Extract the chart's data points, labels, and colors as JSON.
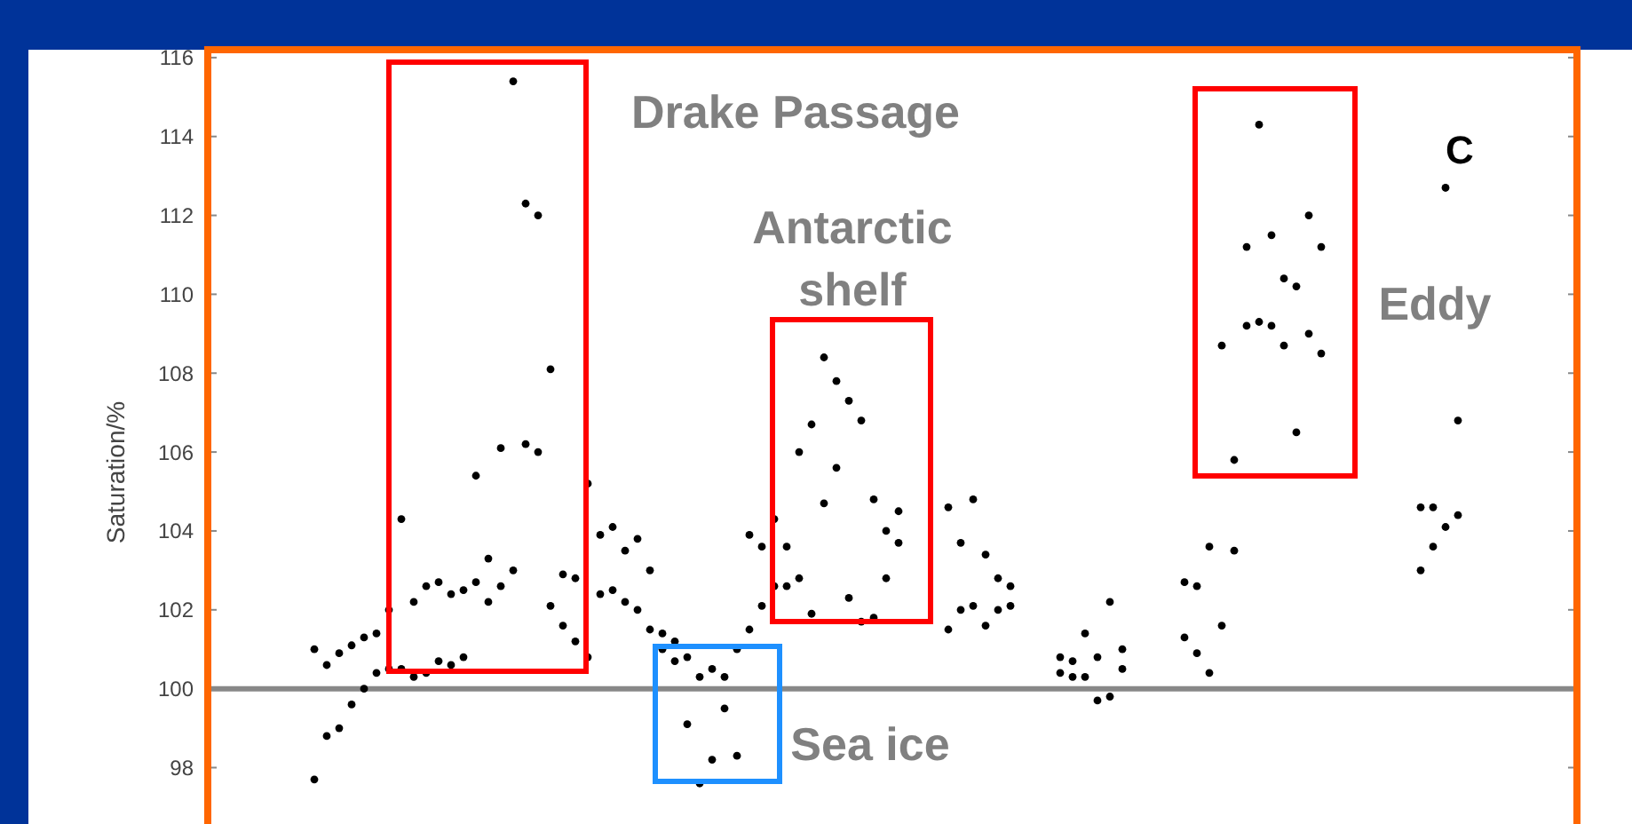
{
  "chart_data": {
    "type": "scatter",
    "ylabel": "Saturation/%",
    "ylim": [
      96.3,
      116.2
    ],
    "yticks": [
      98,
      100,
      102,
      104,
      106,
      108,
      110,
      112,
      114,
      116
    ],
    "grid": false,
    "marker": "circle",
    "tick_labels": "y",
    "categories": [
      null,
      null,
      null,
      null,
      null,
      null,
      null,
      null,
      null,
      null,
      null,
      null,
      null,
      null,
      null,
      null,
      null,
      null,
      null,
      null,
      null,
      null,
      null,
      null,
      null,
      null,
      null,
      null,
      null,
      null,
      null,
      null,
      null,
      null,
      null,
      null,
      null,
      null,
      null,
      null,
      null,
      null,
      null,
      null,
      null,
      null,
      null,
      null,
      null,
      null,
      null,
      null,
      null,
      null,
      null,
      null,
      null,
      null,
      null,
      null,
      null,
      null,
      null,
      null,
      null,
      null,
      null,
      null,
      null,
      null,
      null,
      null,
      null,
      null,
      null,
      null,
      null,
      null,
      null,
      null,
      null,
      null,
      null,
      null,
      null,
      null,
      null,
      null,
      null,
      null,
      null,
      null,
      null,
      null,
      null,
      null,
      null,
      null,
      null,
      null,
      null,
      null,
      null,
      null,
      null,
      null,
      null,
      null,
      null,
      null
    ],
    "series": [
      {
        "color": "#000000",
        "values": [
          null,
          null,
          null,
          null,
          null,
          null,
          null,
          null,
          101.0,
          100.6,
          100.9,
          101.1,
          101.3,
          101.4,
          102.0,
          104.3,
          102.2,
          102.6,
          102.7,
          102.4,
          102.5,
          105.4,
          103.3,
          106.1,
          115.4,
          112.3,
          112.0,
          108.1,
          102.9,
          102.8,
          105.2,
          103.9,
          104.1,
          103.5,
          103.8,
          103.0,
          101.4,
          101.2,
          100.8,
          100.3,
          100.5,
          100.3,
          101.0,
          103.9,
          103.6,
          104.3,
          103.6,
          106.0,
          106.7,
          108.4,
          107.8,
          107.3,
          106.8,
          104.8,
          104.0,
          104.5,
          null,
          null,
          null,
          104.6,
          103.7,
          104.8,
          103.4,
          102.8,
          102.6,
          null,
          null,
          null,
          100.8,
          100.7,
          101.4,
          100.8,
          102.2,
          101.0,
          null,
          null,
          null,
          null,
          102.7,
          102.6,
          103.6,
          108.7,
          105.8,
          111.2,
          114.3,
          111.5,
          110.4,
          110.2,
          112.0,
          111.2,
          null,
          null,
          null,
          null,
          null,
          null,
          null,
          104.6,
          104.6,
          112.7,
          106.8,
          null,
          null,
          null,
          null,
          null,
          null,
          null,
          null,
          null
        ]
      },
      {
        "color": "#000000",
        "values": [
          null,
          null,
          null,
          null,
          null,
          null,
          null,
          null,
          97.7,
          98.8,
          99.0,
          99.6,
          100.0,
          100.4,
          100.5,
          100.5,
          100.3,
          100.4,
          100.7,
          100.6,
          100.8,
          102.7,
          102.2,
          102.6,
          103.0,
          106.2,
          106.0,
          102.1,
          101.6,
          101.2,
          100.8,
          102.4,
          102.5,
          102.2,
          102.0,
          101.5,
          101.0,
          100.7,
          99.1,
          97.6,
          98.2,
          99.5,
          98.3,
          101.5,
          102.1,
          102.6,
          102.6,
          102.8,
          101.9,
          104.7,
          105.6,
          102.3,
          101.7,
          101.8,
          102.8,
          103.7,
          null,
          null,
          null,
          101.5,
          102.0,
          102.1,
          101.6,
          102.0,
          102.1,
          null,
          null,
          null,
          100.4,
          100.3,
          100.3,
          99.7,
          99.8,
          100.5,
          null,
          null,
          null,
          null,
          101.3,
          100.9,
          100.4,
          101.6,
          103.5,
          109.2,
          109.3,
          109.2,
          108.7,
          106.5,
          109.0,
          108.5,
          null,
          null,
          null,
          null,
          null,
          null,
          null,
          103.0,
          103.6,
          104.1,
          104.4,
          null,
          null,
          null,
          null,
          null,
          null,
          null,
          null,
          null
        ]
      }
    ],
    "ref_lines": [
      {
        "axis": "y",
        "value": 100,
        "color": "#888888",
        "line_style": "solid"
      }
    ],
    "annotations": [
      "Drake Passage",
      "Antarctic\nshelf",
      "Eddy",
      "Sea ice",
      "C"
    ]
  }
}
